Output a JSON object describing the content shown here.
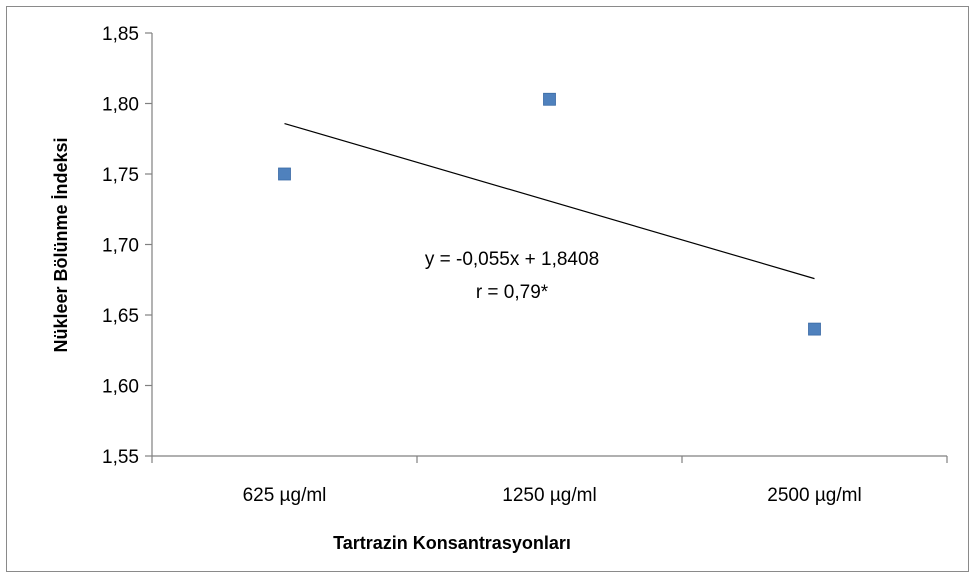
{
  "chart_data": {
    "type": "scatter",
    "title": "",
    "xlabel": "Tartrazin Konsantrasyonları",
    "ylabel": "Nükleer Bölünme İndeksi",
    "categories": [
      "625 µg/ml",
      "1250 µg/ml",
      "2500 µg/ml"
    ],
    "series": [
      {
        "values": [
          1.75,
          1.803,
          1.64
        ],
        "color": "#4F81BD",
        "marker": "square"
      }
    ],
    "trendline": {
      "type": "linear",
      "slope": -0.055,
      "intercept": 1.8408,
      "color": "#000000"
    },
    "ylim": [
      1.55,
      1.85
    ],
    "yticks": [
      "1,55",
      "1,60",
      "1,65",
      "1,70",
      "1,75",
      "1,80",
      "1,85"
    ],
    "ytick_values": [
      1.55,
      1.6,
      1.65,
      1.7,
      1.75,
      1.8,
      1.85
    ],
    "grid": false,
    "legend": "none",
    "annotations": [
      "y = -0,055x + 1,8408",
      "r = 0,79*"
    ]
  }
}
